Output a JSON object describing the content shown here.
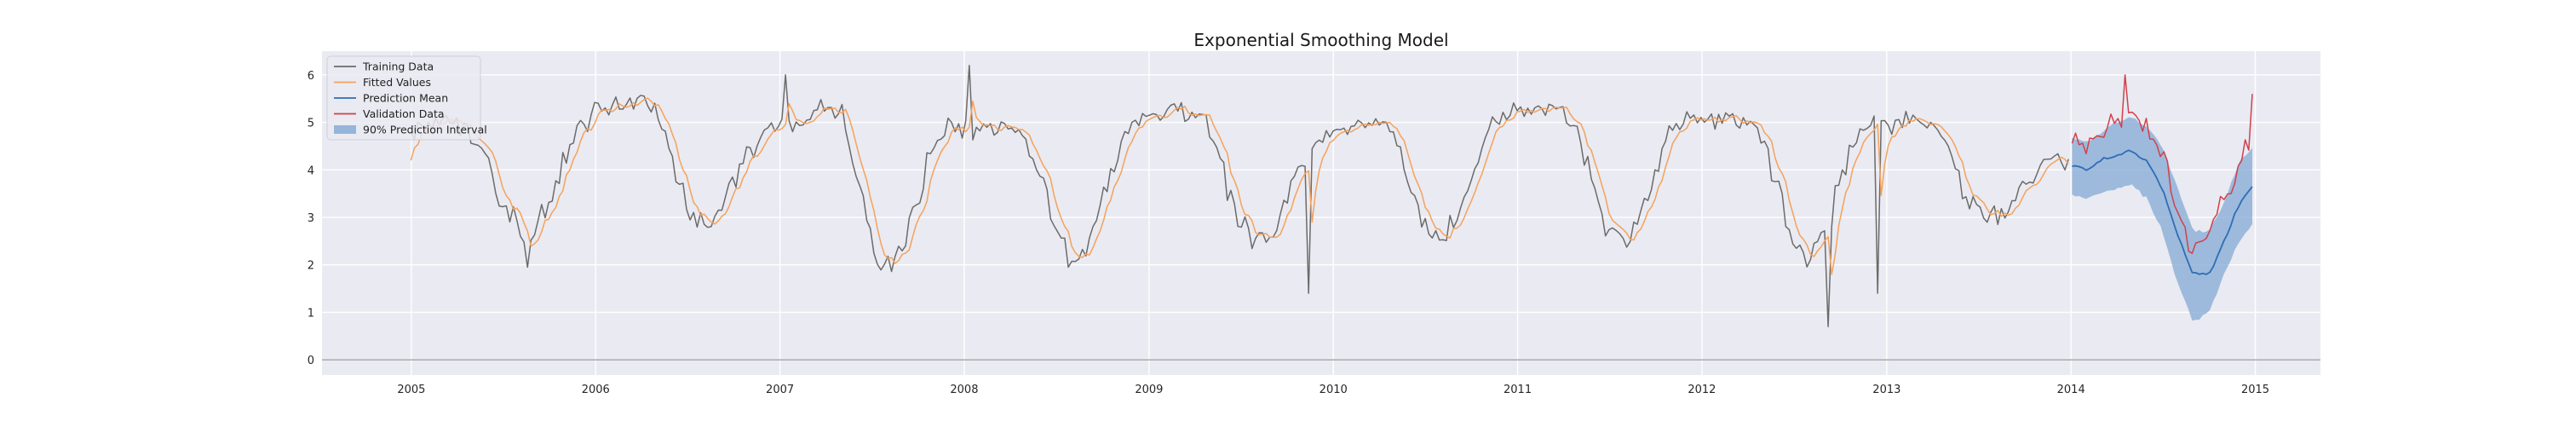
{
  "chart_data": {
    "type": "line",
    "title": "Exponential Smoothing Model",
    "xlabel": "",
    "ylabel": "",
    "x_ticks": [
      "2005",
      "2006",
      "2007",
      "2008",
      "2009",
      "2010",
      "2011",
      "2012",
      "2013",
      "2014",
      "2015"
    ],
    "y_ticks": [
      "0",
      "1",
      "2",
      "3",
      "4",
      "5",
      "6"
    ],
    "xlim": [
      "2004-07-08",
      "2015-05-10"
    ],
    "ylim": [
      -0.32,
      6.5
    ],
    "grid": true,
    "legend_position": "top-left",
    "training_period": {
      "start": "2004-12-31",
      "end": "2013-12-27",
      "frequency": "weekly"
    },
    "validation_period": {
      "start": "2014-01-03",
      "end": "2014-12-26",
      "frequency": "weekly"
    },
    "series": [
      {
        "name": "Training Data",
        "color": "#6b6b6b",
        "monthly_approx_level": [
          4.8,
          4.9,
          5.0,
          5.1,
          5.0,
          4.8,
          4.2,
          3.4,
          2.8,
          2.6,
          3.3,
          4.2,
          4.9,
          5.2,
          5.3,
          5.4,
          5.5,
          5.3,
          4.2,
          3.2,
          2.8,
          3.0,
          3.8,
          4.4,
          4.7,
          4.9,
          5.0,
          5.2,
          5.4,
          5.2,
          4.0,
          2.5,
          2.0,
          2.4,
          3.5,
          4.5,
          5.0,
          4.9,
          4.8,
          4.9,
          4.9,
          4.6,
          3.8,
          2.8,
          2.0,
          2.3,
          3.4,
          4.4,
          5.0,
          5.1,
          5.2,
          5.2,
          5.2,
          4.9,
          3.8,
          2.9,
          2.5,
          2.6,
          3.4,
          4.1,
          4.6,
          4.8,
          4.9,
          5.0,
          5.0,
          4.7,
          3.7,
          2.8,
          2.6,
          2.9,
          3.9,
          4.8,
          5.2,
          5.3,
          5.3,
          5.3,
          5.3,
          4.8,
          3.7,
          2.7,
          2.5,
          2.9,
          4.0,
          4.8,
          5.1,
          5.1,
          5.1,
          5.2,
          5.0,
          4.6,
          3.6,
          2.4,
          2.3,
          2.6,
          3.8,
          4.6,
          5.0,
          5.0,
          5.0,
          5.0,
          5.0,
          4.6,
          3.8,
          3.2,
          3.0,
          3.2,
          3.7,
          4.1
        ],
        "extremes": [
          {
            "date": "2005-08-18",
            "value": 1.95
          },
          {
            "date": "2007-01-11",
            "value": 6.0
          },
          {
            "date": "2008-01-10",
            "value": 6.2
          },
          {
            "date": "2009-11-12",
            "value": 1.4
          },
          {
            "date": "2012-09-06",
            "value": 0.7
          },
          {
            "date": "2012-12-13",
            "value": 1.4
          }
        ]
      },
      {
        "name": "Fitted Values",
        "color": "#f5a25a",
        "note_start": {
          "date": "2004-12-31",
          "value": 4.2
        }
      },
      {
        "name": "Prediction Mean",
        "color": "#2f6db5",
        "monthly_values": [
          4.1,
          4.0,
          4.2,
          4.3,
          4.4,
          4.2,
          3.6,
          2.6,
          1.8,
          1.8,
          2.5,
          3.3,
          3.7
        ]
      },
      {
        "name": "Validation Data",
        "color": "#d1404a",
        "monthly_values": [
          4.6,
          4.4,
          4.7,
          5.1,
          5.3,
          4.9,
          4.3,
          3.0,
          2.2,
          2.6,
          3.4,
          4.0,
          4.9
        ],
        "extremes": [
          {
            "date": "2014-04-18",
            "value": 6.0
          },
          {
            "date": "2014-12-26",
            "value": 5.6
          }
        ]
      },
      {
        "name": "90% Prediction Interval",
        "color": "#86acd6",
        "type": "area",
        "monthly_lower": [
          3.5,
          3.4,
          3.5,
          3.6,
          3.7,
          3.4,
          2.7,
          1.6,
          0.8,
          1.0,
          1.8,
          2.5,
          2.9
        ],
        "monthly_upper": [
          4.7,
          4.6,
          4.8,
          5.0,
          5.1,
          4.9,
          4.5,
          3.6,
          2.7,
          2.7,
          3.3,
          4.2,
          4.5
        ]
      }
    ]
  }
}
